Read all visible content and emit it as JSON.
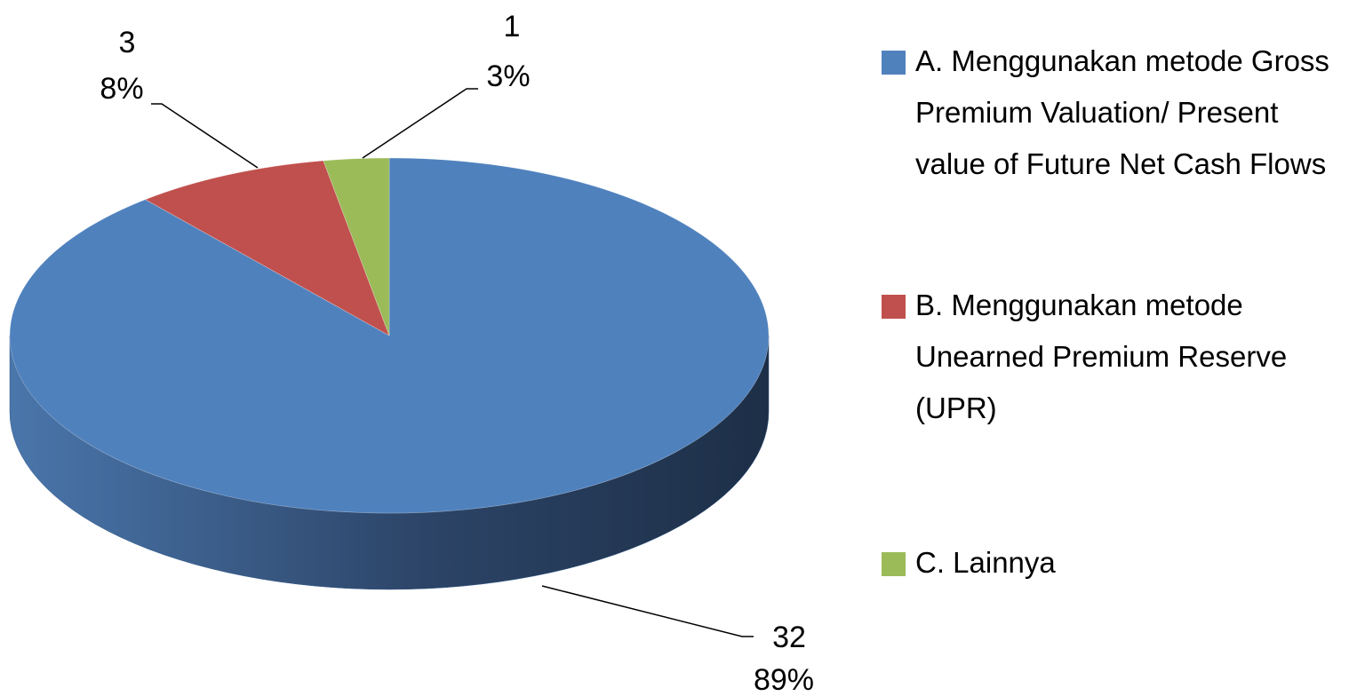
{
  "chart_data": {
    "type": "pie3d",
    "categories": [
      "A. Menggunakan metode Gross Premium Valuation/ Present value of Future Net Cash Flows",
      "B. Menggunakan metode Unearned Premium Reserve (UPR)",
      "C. Lainnya"
    ],
    "values": [
      32,
      3,
      1
    ],
    "percentages": [
      89,
      8,
      3
    ],
    "percentage_labels": [
      "89%",
      "8%",
      "3%"
    ],
    "colors": [
      "#4f81bd",
      "#c0504d",
      "#9bbb59"
    ],
    "legend": "right"
  }
}
